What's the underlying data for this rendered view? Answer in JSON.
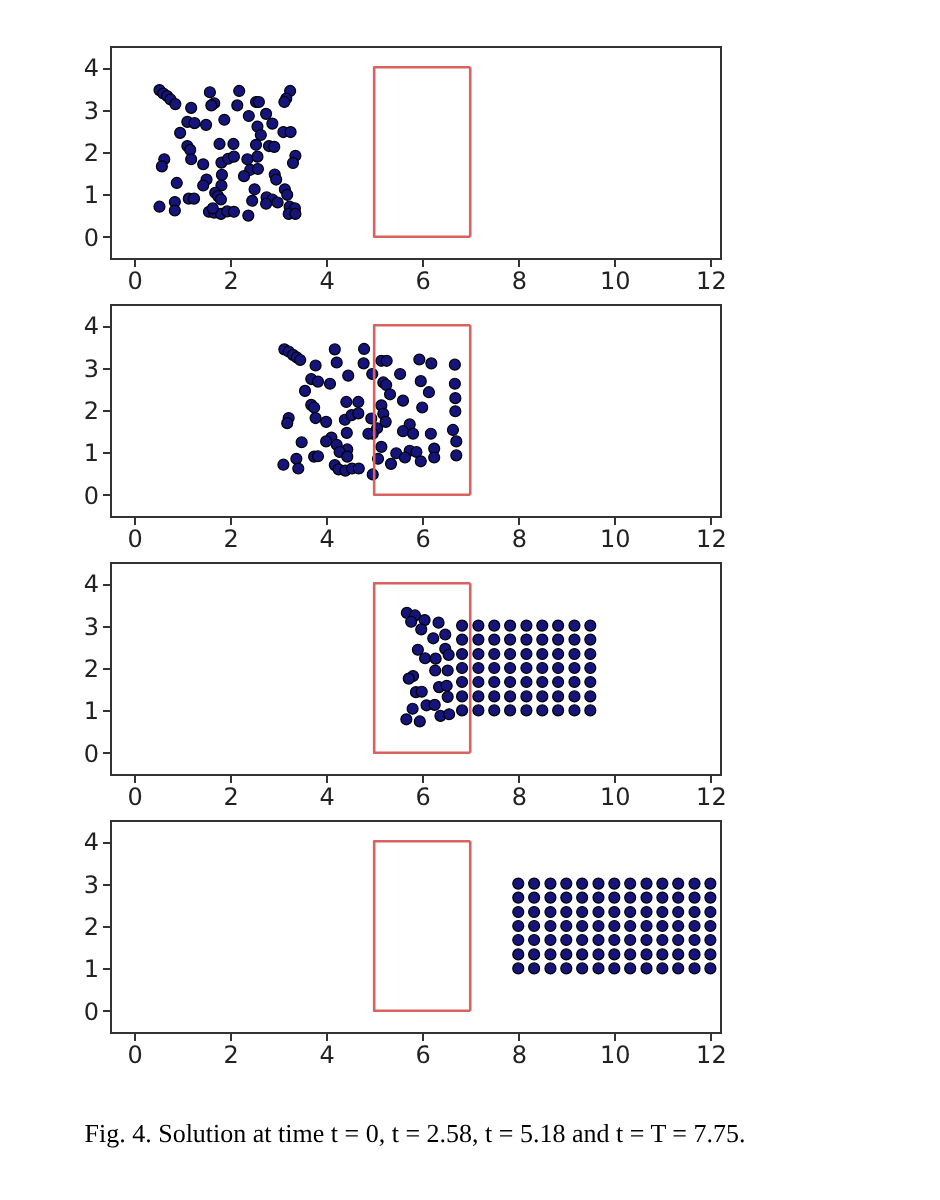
{
  "chart_data": [
    {
      "type": "scatter",
      "marker": "circle",
      "xlim": [
        -0.5,
        12.2
      ],
      "ylim": [
        -0.5,
        4.5
      ],
      "xticks": [
        0,
        2,
        4,
        6,
        8,
        10,
        12
      ],
      "yticks": [
        0,
        1,
        2,
        3,
        4
      ],
      "series": [
        {
          "color": "#14147a",
          "x": [
            0.53,
            0.61,
            0.69,
            0.76,
            0.86,
            1.19,
            1.58,
            1.67,
            1.61,
            2.19,
            2.15,
            2.54,
            2.6,
            3.25,
            3.17,
            3.13,
            1.11,
            1.26,
            0.96,
            1.5,
            1.88,
            2.39,
            2.75,
            2.57,
            2.88,
            2.64,
            3.11,
            3.26,
            1.11,
            1.17,
            1.78,
            2.07,
            2.54,
            2.81,
            2.92,
            0.63,
            0.58,
            1.19,
            1.82,
            1.96,
            2.08,
            2.36,
            2.57,
            3.36,
            3.31,
            1.44,
            2.42,
            2.58,
            2.29,
            1.83,
            2.93,
            2.96,
            1.51,
            1.44,
            0.89,
            1.82,
            2.51,
            3.14,
            3.19,
            1.69,
            1.75,
            1.14,
            1.25,
            1.81,
            0.85,
            2.46,
            2.76,
            2.88,
            2.99,
            0.53,
            0.85,
            1.56,
            1.67,
            1.81,
            1.94,
            2.08,
            2.38,
            3.24,
            3.35,
            3.22,
            3.36,
            2.75,
            1.64
          ],
          "values": [
            3.46,
            3.38,
            3.32,
            3.24,
            3.13,
            3.04,
            3.41,
            3.15,
            3.1,
            3.44,
            3.1,
            3.18,
            3.18,
            3.44,
            3.26,
            3.18,
            2.71,
            2.68,
            2.45,
            2.64,
            2.76,
            2.85,
            2.9,
            2.6,
            2.67,
            2.4,
            2.47,
            2.47,
            2.14,
            2.05,
            2.19,
            2.19,
            2.17,
            2.14,
            2.12,
            1.83,
            1.66,
            1.83,
            1.75,
            1.84,
            1.89,
            1.83,
            1.89,
            1.91,
            1.74,
            1.71,
            1.58,
            1.6,
            1.43,
            1.46,
            1.47,
            1.35,
            1.35,
            1.21,
            1.27,
            1.21,
            1.12,
            1.12,
            0.99,
            1.04,
            0.96,
            0.9,
            0.9,
            0.88,
            0.82,
            0.85,
            0.93,
            0.88,
            0.81,
            0.71,
            0.62,
            0.59,
            0.57,
            0.54,
            0.6,
            0.59,
            0.5,
            0.71,
            0.67,
            0.54,
            0.54,
            0.78,
            0.67
          ]
        },
        {
          "type": "line",
          "marker": "none",
          "color": "#d9625f",
          "x": [
            7,
            5,
            5,
            7
          ],
          "values": [
            0,
            0,
            4,
            4
          ]
        },
        {
          "type": "line",
          "marker": "none",
          "color": "#d9625f",
          "x": [
            7,
            7
          ],
          "values": [
            4,
            0
          ]
        }
      ]
    },
    {
      "type": "scatter",
      "marker": "circle",
      "xlim": [
        -0.5,
        12.2
      ],
      "ylim": [
        -0.5,
        4.5
      ],
      "xticks": [
        0,
        2,
        4,
        6,
        8,
        10,
        12
      ],
      "yticks": [
        0,
        1,
        2,
        3,
        4
      ],
      "series": [
        {
          "color": "#14147a",
          "x": [
            3.13,
            3.22,
            3.31,
            3.39,
            3.46,
            3.78,
            4.18,
            4.22,
            4.79,
            4.78,
            5.15,
            5.26,
            5.94,
            6.19,
            6.68,
            4.96,
            3.69,
            3.83,
            4.08,
            3.56,
            4.46,
            5.54,
            5.19,
            5.25,
            5.97,
            5.33,
            6.14,
            6.68,
            6.69,
            3.69,
            3.75,
            4.42,
            4.67,
            5.6,
            5.15,
            6.0,
            6.69,
            3.78,
            3.22,
            3.19,
            4.0,
            4.39,
            4.53,
            4.67,
            4.94,
            5.19,
            5.24,
            5.06,
            4.97,
            5.74,
            5.6,
            5.81,
            6.18,
            6.64,
            4.11,
            4.43,
            4.88,
            3.49,
            4.0,
            4.22,
            6.71,
            4.44,
            4.28,
            5.15,
            5.46,
            5.74,
            6.25,
            3.38,
            3.75,
            3.83,
            4.44,
            5.08,
            5.64,
            5.88,
            6.25,
            6.71,
            3.11,
            3.42,
            4.18,
            4.26,
            4.4,
            4.54,
            4.68,
            4.97,
            5.35,
            5.97
          ],
          "values": [
            3.43,
            3.38,
            3.3,
            3.24,
            3.18,
            3.05,
            3.43,
            3.12,
            3.44,
            3.1,
            3.16,
            3.16,
            3.19,
            3.1,
            3.07,
            2.85,
            2.73,
            2.67,
            2.62,
            2.45,
            2.81,
            2.85,
            2.65,
            2.59,
            2.68,
            2.37,
            2.42,
            2.62,
            2.28,
            2.12,
            2.06,
            2.19,
            2.19,
            2.22,
            2.11,
            2.06,
            1.97,
            1.81,
            1.81,
            1.69,
            1.72,
            1.77,
            1.88,
            1.92,
            1.8,
            1.91,
            1.72,
            1.57,
            1.44,
            1.66,
            1.5,
            1.44,
            1.44,
            1.53,
            1.35,
            1.46,
            1.44,
            1.24,
            1.26,
            1.18,
            1.26,
            1.07,
            1.01,
            1.13,
            0.98,
            1.04,
            1.09,
            0.85,
            0.9,
            0.91,
            0.9,
            0.85,
            0.88,
            1.01,
            0.88,
            0.93,
            0.71,
            0.62,
            0.7,
            0.6,
            0.57,
            0.62,
            0.62,
            0.48,
            0.73,
            0.79
          ]
        },
        {
          "type": "line",
          "marker": "none",
          "color": "#d9625f",
          "x": [
            7,
            5,
            5,
            7
          ],
          "values": [
            0,
            0,
            4,
            4
          ]
        },
        {
          "type": "line",
          "marker": "none",
          "color": "#d9625f",
          "x": [
            7,
            7
          ],
          "values": [
            4,
            0
          ]
        }
      ]
    },
    {
      "type": "scatter",
      "marker": "circle",
      "xlim": [
        -0.5,
        12.2
      ],
      "ylim": [
        -0.5,
        4.5
      ],
      "xticks": [
        0,
        2,
        4,
        6,
        8,
        10,
        12
      ],
      "yticks": [
        0,
        1,
        2,
        3,
        4
      ],
      "series": [
        {
          "color": "#14147a",
          "x": [
            5.68,
            5.85,
            5.77,
            6.05,
            5.98,
            6.34,
            6.23,
            6.48,
            5.91,
            6.06,
            6.28,
            6.48,
            6.55,
            5.81,
            5.72,
            6.27,
            6.53,
            5.87,
            5.99,
            6.35,
            6.51,
            6.53,
            5.8,
            6.09,
            6.26,
            5.67,
            5.95,
            6.38,
            6.56,
            6.83,
            7.17,
            7.5,
            7.83,
            8.17,
            8.5,
            8.83,
            9.17,
            9.5,
            6.83,
            7.17,
            7.5,
            7.83,
            8.17,
            8.5,
            8.83,
            9.17,
            9.5,
            6.83,
            7.17,
            7.5,
            7.83,
            8.17,
            8.5,
            8.83,
            9.17,
            9.5,
            6.83,
            7.17,
            7.5,
            7.83,
            8.17,
            8.5,
            8.83,
            9.17,
            9.5,
            6.83,
            7.17,
            7.5,
            7.83,
            8.17,
            8.5,
            8.83,
            9.17,
            9.5,
            6.83,
            7.17,
            7.5,
            7.83,
            8.17,
            8.5,
            8.83,
            9.17,
            9.5,
            6.83,
            7.17,
            7.5,
            7.83,
            8.17,
            8.5,
            8.83,
            9.17,
            9.5
          ],
          "values": [
            3.3,
            3.24,
            3.09,
            3.13,
            2.91,
            3.07,
            2.7,
            2.79,
            2.43,
            2.23,
            2.22,
            2.45,
            2.31,
            1.81,
            1.75,
            1.94,
            1.94,
            1.43,
            1.44,
            1.55,
            1.58,
            1.32,
            1.04,
            1.12,
            1.13,
            0.79,
            0.74,
            0.87,
            0.91,
            1,
            1,
            1,
            1,
            1,
            1,
            1,
            1,
            1,
            1.33,
            1.33,
            1.33,
            1.33,
            1.33,
            1.33,
            1.33,
            1.33,
            1.33,
            1.67,
            1.67,
            1.67,
            1.67,
            1.67,
            1.67,
            1.67,
            1.67,
            1.67,
            2,
            2,
            2,
            2,
            2,
            2,
            2,
            2,
            2,
            2.33,
            2.33,
            2.33,
            2.33,
            2.33,
            2.33,
            2.33,
            2.33,
            2.33,
            2.67,
            2.67,
            2.67,
            2.67,
            2.67,
            2.67,
            2.67,
            2.67,
            2.67,
            3,
            3,
            3,
            3,
            3,
            3,
            3,
            3,
            3
          ]
        },
        {
          "type": "line",
          "marker": "none",
          "color": "#d9625f",
          "x": [
            7,
            5,
            5,
            7
          ],
          "values": [
            0,
            0,
            4,
            4
          ]
        },
        {
          "type": "line",
          "marker": "none",
          "color": "#d9625f",
          "x": [
            7,
            7
          ],
          "values": [
            4,
            0
          ]
        }
      ]
    },
    {
      "type": "scatter",
      "marker": "circle",
      "xlim": [
        -0.5,
        12.2
      ],
      "ylim": [
        -0.5,
        4.5
      ],
      "xticks": [
        0,
        2,
        4,
        6,
        8,
        10,
        12
      ],
      "yticks": [
        0,
        1,
        2,
        3,
        4
      ],
      "annotations": [
        "Fig. 4. Solution at time t = 0, t = 2.58, t = 5.18 and t = T = 7.75."
      ],
      "series": [
        {
          "color": "#14147a",
          "x": [
            8,
            8.33,
            8.67,
            9,
            9.33,
            9.67,
            10,
            10.33,
            10.67,
            11,
            11.33,
            11.67,
            12,
            8,
            8.33,
            8.67,
            9,
            9.33,
            9.67,
            10,
            10.33,
            10.67,
            11,
            11.33,
            11.67,
            12,
            8,
            8.33,
            8.67,
            9,
            9.33,
            9.67,
            10,
            10.33,
            10.67,
            11,
            11.33,
            11.67,
            12,
            8,
            8.33,
            8.67,
            9,
            9.33,
            9.67,
            10,
            10.33,
            10.67,
            11,
            11.33,
            11.67,
            12,
            8,
            8.33,
            8.67,
            9,
            9.33,
            9.67,
            10,
            10.33,
            10.67,
            11,
            11.33,
            11.67,
            12,
            8,
            8.33,
            8.67,
            9,
            9.33,
            9.67,
            10,
            10.33,
            10.67,
            11,
            11.33,
            11.67,
            12,
            8,
            8.33,
            8.67,
            9,
            9.33,
            9.67,
            10,
            10.33,
            10.67,
            11,
            11.33,
            11.67,
            12
          ],
          "values": [
            1,
            1,
            1,
            1,
            1,
            1,
            1,
            1,
            1,
            1,
            1,
            1,
            1,
            1.33,
            1.33,
            1.33,
            1.33,
            1.33,
            1.33,
            1.33,
            1.33,
            1.33,
            1.33,
            1.33,
            1.33,
            1.33,
            1.67,
            1.67,
            1.67,
            1.67,
            1.67,
            1.67,
            1.67,
            1.67,
            1.67,
            1.67,
            1.67,
            1.67,
            1.67,
            2,
            2,
            2,
            2,
            2,
            2,
            2,
            2,
            2,
            2,
            2,
            2,
            2,
            2.33,
            2.33,
            2.33,
            2.33,
            2.33,
            2.33,
            2.33,
            2.33,
            2.33,
            2.33,
            2.33,
            2.33,
            2.33,
            2.67,
            2.67,
            2.67,
            2.67,
            2.67,
            2.67,
            2.67,
            2.67,
            2.67,
            2.67,
            2.67,
            2.67,
            2.67,
            3,
            3,
            3,
            3,
            3,
            3,
            3,
            3,
            3,
            3,
            3,
            3,
            3
          ]
        },
        {
          "type": "line",
          "marker": "none",
          "color": "#d9625f",
          "x": [
            7,
            5,
            5,
            7
          ],
          "values": [
            0,
            0,
            4,
            4
          ]
        },
        {
          "type": "line",
          "marker": "none",
          "color": "#d9625f",
          "x": [
            7,
            7
          ],
          "values": [
            4,
            0
          ]
        }
      ]
    }
  ]
}
